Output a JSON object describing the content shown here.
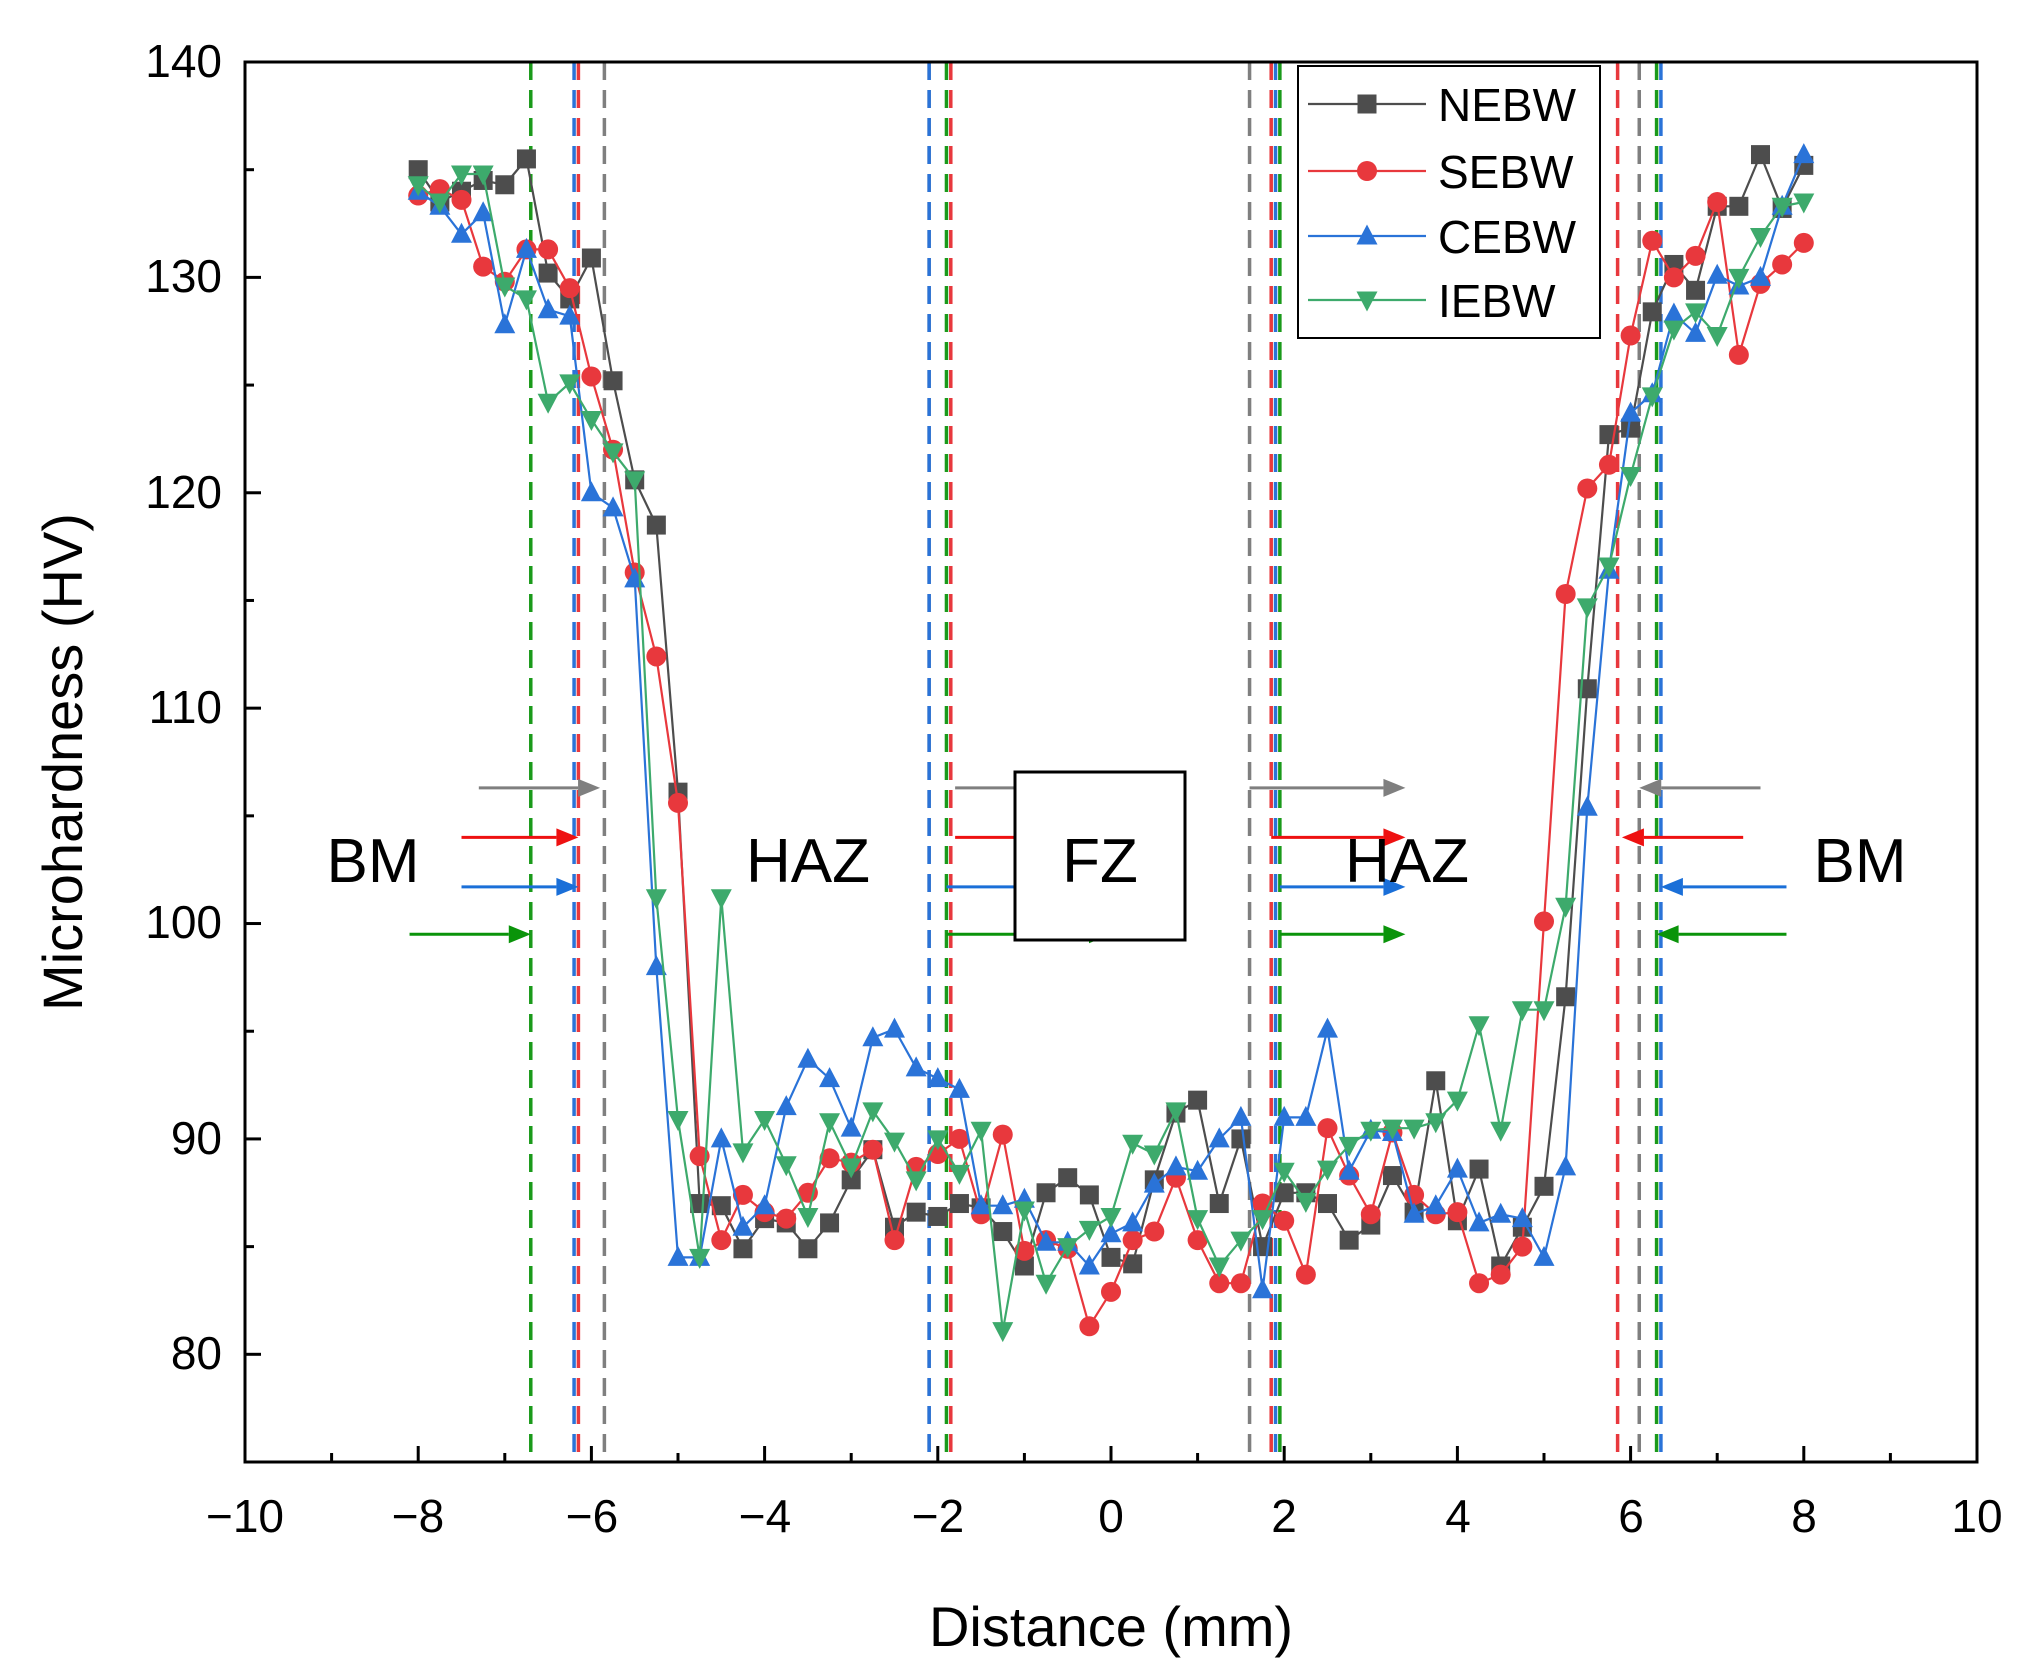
{
  "chart_data": {
    "type": "line",
    "title": "",
    "xlabel": "Distance (mm)",
    "ylabel": "Microhardness (HV)",
    "xlim": [
      -10,
      10
    ],
    "ylim": [
      75,
      140
    ],
    "xticks": [
      -10,
      -8,
      -6,
      -4,
      -2,
      0,
      2,
      4,
      6,
      8,
      10
    ],
    "xtick_labels": [
      "−10",
      "−8",
      "−6",
      "−4",
      "−2",
      "0",
      "2",
      "4",
      "6",
      "8",
      "10"
    ],
    "yticks": [
      80,
      90,
      100,
      110,
      120,
      130,
      140
    ],
    "ytick_labels": [
      "80",
      "90",
      "100",
      "110",
      "120",
      "130",
      "140"
    ],
    "legend_position": "top-right",
    "zone_labels": [
      "BM",
      "HAZ",
      "FZ",
      "HAZ",
      "BM"
    ],
    "zone_label_positions_data": [
      [
        -8.0,
        102.9
      ],
      [
        -3.5,
        102.9
      ],
      [
        0,
        102.9
      ],
      [
        3.5,
        102.9
      ],
      [
        8.6,
        102.9
      ]
    ],
    "series": [
      {
        "name": "NEBW",
        "color": "#4d4d4d",
        "marker": "square",
        "x": [
          -8.0,
          -7.75,
          -7.5,
          -7.25,
          -7.0,
          -6.75,
          -6.5,
          -6.25,
          -6.0,
          -5.75,
          -5.5,
          -5.25,
          -5.0,
          -4.75,
          -4.5,
          -4.25,
          -4.0,
          -3.75,
          -3.5,
          -3.25,
          -3.0,
          -2.75,
          -2.5,
          -2.25,
          -2.0,
          -1.75,
          -1.5,
          -1.25,
          -1.0,
          -0.75,
          -0.5,
          -0.25,
          0.0,
          0.25,
          0.5,
          0.75,
          1.0,
          1.25,
          1.5,
          1.75,
          2.0,
          2.25,
          2.5,
          2.75,
          3.0,
          3.25,
          3.5,
          3.75,
          4.0,
          4.25,
          4.5,
          4.75,
          5.0,
          5.25,
          5.5,
          5.75,
          6.0,
          6.25,
          6.5,
          6.75,
          7.0,
          7.25,
          7.5,
          7.75,
          8.0
        ],
        "y": [
          135.0,
          133.5,
          134.0,
          134.5,
          134.3,
          135.5,
          130.2,
          129.0,
          130.9,
          125.2,
          120.6,
          118.5,
          106.1,
          87.0,
          86.9,
          84.9,
          86.3,
          86.1,
          84.9,
          86.1,
          88.1,
          89.5,
          85.9,
          86.6,
          86.4,
          87.0,
          86.8,
          85.7,
          84.1,
          87.5,
          88.2,
          87.4,
          84.5,
          84.2,
          88.1,
          91.2,
          91.8,
          87.0,
          90.0,
          85.0,
          87.5,
          87.5,
          87.0,
          85.3,
          86.0,
          88.3,
          86.6,
          92.7,
          86.2,
          88.6,
          84.1,
          85.9,
          87.8,
          96.6,
          110.9,
          122.7,
          123.0,
          128.4,
          130.6,
          129.4,
          133.3,
          133.3,
          135.7,
          133.2,
          135.2
        ]
      },
      {
        "name": "SEBW",
        "color": "#e8383d",
        "marker": "circle",
        "x": [
          -8.0,
          -7.75,
          -7.5,
          -7.25,
          -7.0,
          -6.75,
          -6.5,
          -6.25,
          -6.0,
          -5.75,
          -5.5,
          -5.25,
          -5.0,
          -4.75,
          -4.5,
          -4.25,
          -4.0,
          -3.75,
          -3.5,
          -3.25,
          -3.0,
          -2.75,
          -2.5,
          -2.25,
          -2.0,
          -1.75,
          -1.5,
          -1.25,
          -1.0,
          -0.75,
          -0.5,
          -0.25,
          0.0,
          0.25,
          0.5,
          0.75,
          1.0,
          1.25,
          1.5,
          1.75,
          2.0,
          2.25,
          2.5,
          2.75,
          3.0,
          3.25,
          3.5,
          3.75,
          4.0,
          4.25,
          4.5,
          4.75,
          5.0,
          5.25,
          5.5,
          5.75,
          6.0,
          6.25,
          6.5,
          6.75,
          7.0,
          7.25,
          7.5,
          7.75,
          8.0
        ],
        "y": [
          133.8,
          134.1,
          133.6,
          130.5,
          129.8,
          131.3,
          131.3,
          129.5,
          125.4,
          122.0,
          116.3,
          112.4,
          105.6,
          89.2,
          85.3,
          87.4,
          86.6,
          86.3,
          87.5,
          89.1,
          88.9,
          89.5,
          85.3,
          88.7,
          89.3,
          90.0,
          86.5,
          90.2,
          84.8,
          85.3,
          84.9,
          81.3,
          82.9,
          85.3,
          85.7,
          88.2,
          85.3,
          83.3,
          83.3,
          87.0,
          86.2,
          83.7,
          90.5,
          88.3,
          86.5,
          90.3,
          87.4,
          86.5,
          86.6,
          83.3,
          83.7,
          85.0,
          100.1,
          115.3,
          120.2,
          121.3,
          127.3,
          131.7,
          130.0,
          131.0,
          133.5,
          126.4,
          129.7,
          130.6,
          131.6
        ]
      },
      {
        "name": "CEBW",
        "color": "#2a73d8",
        "marker": "triangle-up",
        "x": [
          -8.0,
          -7.75,
          -7.5,
          -7.25,
          -7.0,
          -6.75,
          -6.5,
          -6.25,
          -6.0,
          -5.75,
          -5.5,
          -5.25,
          -5.0,
          -4.75,
          -4.5,
          -4.25,
          -4.0,
          -3.75,
          -3.5,
          -3.25,
          -3.0,
          -2.75,
          -2.5,
          -2.25,
          -2.0,
          -1.75,
          -1.5,
          -1.25,
          -1.0,
          -0.75,
          -0.5,
          -0.25,
          0.0,
          0.25,
          0.5,
          0.75,
          1.0,
          1.25,
          1.5,
          1.75,
          2.0,
          2.25,
          2.5,
          2.75,
          3.0,
          3.25,
          3.5,
          3.75,
          4.0,
          4.25,
          4.5,
          4.75,
          5.0,
          5.25,
          5.5,
          5.75,
          6.0,
          6.25,
          6.5,
          6.75,
          7.0,
          7.25,
          7.5,
          7.75,
          8.0
        ],
        "y": [
          134.0,
          133.3,
          132.0,
          133.0,
          127.8,
          131.3,
          128.5,
          128.2,
          120.0,
          119.3,
          116.0,
          98.0,
          84.5,
          84.5,
          90.0,
          85.9,
          86.9,
          91.5,
          93.7,
          92.8,
          90.5,
          94.7,
          95.1,
          93.3,
          92.8,
          92.3,
          86.9,
          86.9,
          87.2,
          85.2,
          85.2,
          84.1,
          85.6,
          86.1,
          87.9,
          88.7,
          88.5,
          90.0,
          91.0,
          83.0,
          91.0,
          91.0,
          95.1,
          88.5,
          90.4,
          90.3,
          86.5,
          86.9,
          88.6,
          86.1,
          86.5,
          86.3,
          84.5,
          88.7,
          105.4,
          116.4,
          123.7,
          124.6,
          128.3,
          127.4,
          130.1,
          129.6,
          130.0,
          133.3,
          135.7
        ]
      },
      {
        "name": "IEBW",
        "color": "#3daa6c",
        "marker": "triangle-down",
        "x": [
          -8.0,
          -7.75,
          -7.5,
          -7.25,
          -7.0,
          -6.75,
          -6.5,
          -6.25,
          -6.0,
          -5.75,
          -5.5,
          -5.25,
          -5.0,
          -4.75,
          -4.5,
          -4.25,
          -4.0,
          -3.75,
          -3.5,
          -3.25,
          -3.0,
          -2.75,
          -2.5,
          -2.25,
          -2.0,
          -1.75,
          -1.5,
          -1.25,
          -1.0,
          -0.75,
          -0.5,
          -0.25,
          0.0,
          0.25,
          0.5,
          0.75,
          1.0,
          1.25,
          1.5,
          1.75,
          2.0,
          2.25,
          2.5,
          2.75,
          3.0,
          3.25,
          3.5,
          3.75,
          4.0,
          4.25,
          4.5,
          4.75,
          5.0,
          5.25,
          5.5,
          5.75,
          6.0,
          6.25,
          6.5,
          6.75,
          7.0,
          7.25,
          7.5,
          7.75,
          8.0
        ],
        "y": [
          134.3,
          133.5,
          134.8,
          134.8,
          129.6,
          129.0,
          124.2,
          125.1,
          123.4,
          121.9,
          120.6,
          101.2,
          90.9,
          84.5,
          101.2,
          89.4,
          90.9,
          88.8,
          86.4,
          90.8,
          88.7,
          91.3,
          89.9,
          88.1,
          90.0,
          88.4,
          90.4,
          81.1,
          86.7,
          83.3,
          85.0,
          85.8,
          86.4,
          89.8,
          89.3,
          91.3,
          86.3,
          84.1,
          85.3,
          86.3,
          88.5,
          87.1,
          88.6,
          89.7,
          90.4,
          90.5,
          90.5,
          90.8,
          91.8,
          95.3,
          90.4,
          96.0,
          96.0,
          100.8,
          114.7,
          116.6,
          120.8,
          124.5,
          127.6,
          128.4,
          127.3,
          130.0,
          131.9,
          133.3,
          133.5
        ]
      }
    ],
    "boundaries": [
      {
        "series": "NEBW",
        "color": "#7f7f7f",
        "x": [
          -5.85,
          -2.1,
          1.6,
          6.1
        ]
      },
      {
        "series": "SEBW",
        "color": "#e8383d",
        "x": [
          -6.15,
          -1.85,
          1.85,
          5.85
        ]
      },
      {
        "series": "CEBW",
        "color": "#2a73d8",
        "x": [
          -6.2,
          -2.1,
          1.9,
          6.35
        ]
      },
      {
        "series": "IEBW",
        "color": "#1a9a1a",
        "x": [
          -6.7,
          -1.9,
          1.95,
          6.3
        ]
      }
    ],
    "arrows": [
      {
        "series": "NEBW",
        "color": "#7f7f7f",
        "y": 106.3,
        "x_from": [
          -7.3,
          -1.8,
          1.6,
          7.5
        ],
        "x_to": [
          -5.9,
          0,
          3.4,
          6.1
        ]
      },
      {
        "series": "SEBW",
        "color": "#ee1111",
        "y": 104.0,
        "x_from": [
          -7.5,
          -1.8,
          1.85,
          7.3
        ],
        "x_to": [
          -6.15,
          0,
          3.4,
          5.9
        ]
      },
      {
        "series": "CEBW",
        "color": "#1a6fd8",
        "y": 101.7,
        "x_from": [
          -7.5,
          -1.9,
          1.95,
          7.8
        ],
        "x_to": [
          -6.15,
          0,
          3.4,
          6.35
        ]
      },
      {
        "series": "IEBW",
        "color": "#0a940a",
        "y": 99.5,
        "x_from": [
          -8.1,
          -1.9,
          1.95,
          7.8
        ],
        "x_to": [
          -6.7,
          0,
          3.4,
          6.3
        ]
      }
    ]
  }
}
